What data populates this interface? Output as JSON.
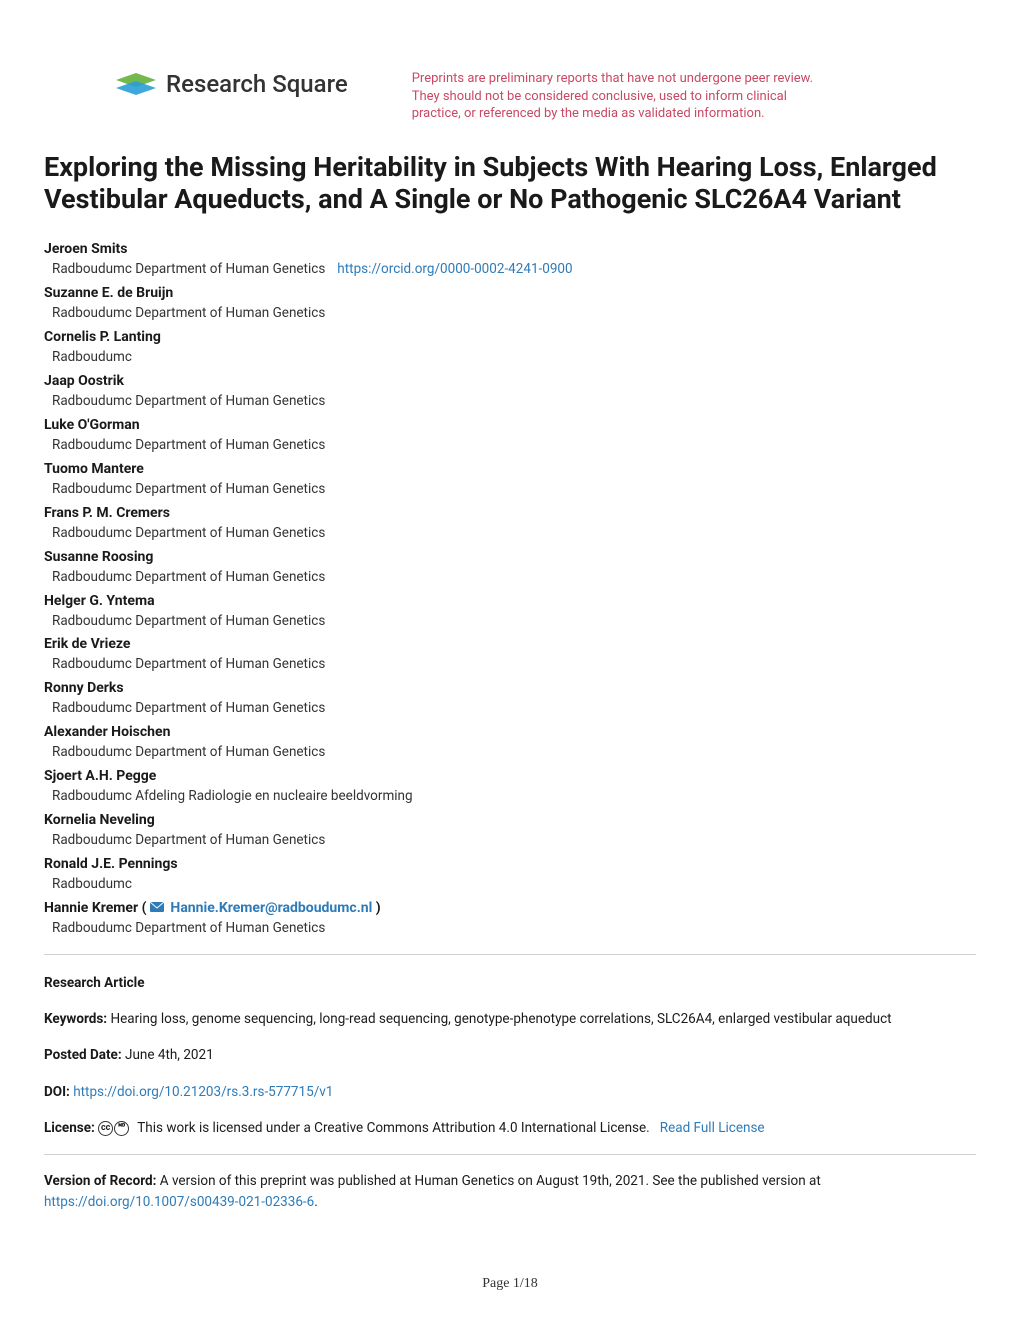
{
  "logo_text": "Research Square",
  "preprint_notice": "Preprints are preliminary reports that have not undergone peer review. They should not be considered conclusive, used to inform clinical practice, or referenced by the media as validated information.",
  "title": "Exploring the Missing Heritability in Subjects With Hearing Loss, Enlarged Vestibular Aqueducts, and A Single or No Pathogenic SLC26A4 Variant",
  "authors": [
    {
      "name": "Jeroen Smits",
      "affiliation": "Radboudumc Department of Human Genetics",
      "orcid": "https://orcid.org/0000-0002-4241-0900"
    },
    {
      "name": "Suzanne E. de Bruijn",
      "affiliation": "Radboudumc Department of Human Genetics"
    },
    {
      "name": "Cornelis P. Lanting",
      "affiliation": "Radboudumc"
    },
    {
      "name": "Jaap Oostrik",
      "affiliation": "Radboudumc Department of Human Genetics"
    },
    {
      "name": "Luke O'Gorman",
      "affiliation": "Radboudumc Department of Human Genetics"
    },
    {
      "name": "Tuomo Mantere",
      "affiliation": "Radboudumc Department of Human Genetics"
    },
    {
      "name": "Frans P. M. Cremers",
      "affiliation": "Radboudumc Department of Human Genetics"
    },
    {
      "name": "Susanne Roosing",
      "affiliation": "Radboudumc Department of Human Genetics"
    },
    {
      "name": "Helger G. Yntema",
      "affiliation": "Radboudumc Department of Human Genetics"
    },
    {
      "name": "Erik de Vrieze",
      "affiliation": "Radboudumc Department of Human Genetics"
    },
    {
      "name": "Ronny Derks",
      "affiliation": "Radboudumc Department of Human Genetics"
    },
    {
      "name": "Alexander Hoischen",
      "affiliation": "Radboudumc Department of Human Genetics"
    },
    {
      "name": "Sjoert A.H. Pegge",
      "affiliation": "Radboudumc Afdeling Radiologie en nucleaire beeldvorming"
    },
    {
      "name": "Kornelia Neveling",
      "affiliation": "Radboudumc Department of Human Genetics"
    },
    {
      "name": "Ronald J.E. Pennings",
      "affiliation": "Radboudumc"
    },
    {
      "name": "Hannie Kremer",
      "affiliation": "Radboudumc Department of Human Genetics",
      "corresponding_email": "Hannie.Kremer@radboudumc.nl"
    }
  ],
  "article_type": "Research Article",
  "keywords_label": "Keywords:",
  "keywords": "Hearing loss, genome sequencing, long-read sequencing, genotype-phenotype correlations, SLC26A4, enlarged vestibular aqueduct",
  "posted_label": "Posted Date:",
  "posted_date": "June 4th, 2021",
  "doi_label": "DOI:",
  "doi_link": "https://doi.org/10.21203/rs.3.rs-577715/v1",
  "license_label": "License:",
  "license_text": "This work is licensed under a Creative Commons Attribution 4.0 International License.",
  "read_full_license": "Read Full License",
  "version_label": "Version of Record:",
  "version_text": "A version of this preprint was published at Human Genetics on August 19th, 2021. See the published version at",
  "version_link": "https://doi.org/10.1007/s00439-021-02336-6",
  "page_number": "Page 1/18",
  "colors": {
    "link": "#2e7bb8",
    "notice": "#c84964",
    "text": "#1a1a1a"
  }
}
